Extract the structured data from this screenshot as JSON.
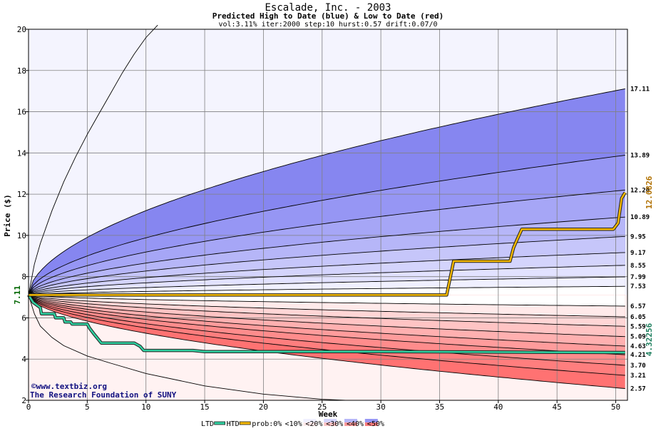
{
  "chart_data": {
    "type": "area",
    "title": "Escalade, Inc. - 2003",
    "subtitle": "Predicted High to Date (blue) &  Low to Date (red)",
    "params": "vol:3.11% iter:2000 step:10 hurst:0.57 drift:0.07/0",
    "xlabel": "Week",
    "ylabel": "Price ($)",
    "xlim": [
      0,
      51
    ],
    "ylim": [
      2,
      20
    ],
    "x_ticks": [
      0,
      5,
      10,
      15,
      20,
      25,
      30,
      35,
      40,
      45,
      50
    ],
    "y_ticks": [
      2,
      4,
      6,
      8,
      10,
      12,
      14,
      16,
      18,
      20
    ],
    "grid": true,
    "start_price": 7.11,
    "start_price_label": "7.11",
    "end_high_label": "12.0826",
    "end_low_label": "4.32256",
    "levels_high": [
      7.53,
      7.99,
      8.55,
      9.17,
      9.95,
      10.89,
      12.2,
      13.89,
      17.11
    ],
    "levels_low": [
      6.57,
      6.05,
      5.59,
      5.09,
      4.63,
      4.21,
      3.7,
      3.21,
      2.57
    ],
    "right_labels": [
      "17.11",
      "13.89",
      "12.20",
      "10.89",
      "9.95",
      "9.17",
      "8.55",
      "7.99",
      "7.53",
      "6.57",
      "6.05",
      "5.59",
      "5.09",
      "4.63",
      "4.21",
      "3.70",
      "3.21",
      "2.57"
    ],
    "band_colors_high": [
      "#ffffff",
      "#f0f0ff",
      "#e2e2ff",
      "#d4d4fc",
      "#c6c6fa",
      "#b6b6f8",
      "#a6a6f6",
      "#9696f4",
      "#8686f0"
    ],
    "band_colors_low": [
      "#ffffff",
      "#ffeaea",
      "#ffd6d6",
      "#ffc4c4",
      "#ffb0b0",
      "#ff9c9c",
      "#ff8c8c",
      "#ff7e7e",
      "#ff7272"
    ],
    "outer_high_color": "#f4f4fe",
    "outer_low_color": "#fff2f2",
    "envelope_high": [
      [
        0,
        7.11
      ],
      [
        0.5,
        8.6
      ],
      [
        1,
        9.6
      ],
      [
        2,
        11.2
      ],
      [
        3,
        12.6
      ],
      [
        4,
        13.8
      ],
      [
        5,
        14.9
      ],
      [
        6,
        15.9
      ],
      [
        7,
        16.9
      ],
      [
        8,
        17.9
      ],
      [
        9,
        18.8
      ],
      [
        10,
        19.6
      ],
      [
        11,
        20.2
      ]
    ],
    "envelope_low": [
      [
        0,
        7.11
      ],
      [
        0.5,
        6.2
      ],
      [
        1,
        5.6
      ],
      [
        2,
        5.05
      ],
      [
        3,
        4.65
      ],
      [
        5,
        4.15
      ],
      [
        7,
        3.8
      ],
      [
        10,
        3.3
      ],
      [
        15,
        2.7
      ],
      [
        20,
        2.3
      ],
      [
        25,
        2.05
      ],
      [
        27,
        1.95
      ]
    ],
    "path_htd": [
      [
        0,
        7.11
      ],
      [
        1,
        7.11
      ],
      [
        35.6,
        7.11
      ],
      [
        36.2,
        8.75
      ],
      [
        41,
        8.75
      ],
      [
        41.3,
        9.4
      ],
      [
        41.6,
        9.8
      ],
      [
        42,
        10.3
      ],
      [
        49.8,
        10.3
      ],
      [
        50.2,
        10.6
      ],
      [
        50.5,
        11.8
      ],
      [
        50.8,
        12.08
      ]
    ],
    "path_ltd": [
      [
        0,
        7.11
      ],
      [
        0.4,
        6.75
      ],
      [
        1,
        6.5
      ],
      [
        1.1,
        6.2
      ],
      [
        2.2,
        6.2
      ],
      [
        2.3,
        6.0
      ],
      [
        3,
        6.0
      ],
      [
        3.1,
        5.8
      ],
      [
        3.6,
        5.8
      ],
      [
        3.7,
        5.7
      ],
      [
        5,
        5.7
      ],
      [
        5.2,
        5.5
      ],
      [
        5.6,
        5.2
      ],
      [
        6.2,
        4.78
      ],
      [
        9,
        4.78
      ],
      [
        9.5,
        4.62
      ],
      [
        9.8,
        4.42
      ],
      [
        14,
        4.42
      ],
      [
        15,
        4.36
      ],
      [
        30,
        4.36
      ],
      [
        50.8,
        4.32
      ]
    ],
    "path_colors": {
      "htd": "#f4b800",
      "ltd": "#30d0a0",
      "outline": "#222222"
    },
    "label_colors": {
      "start": "#006600",
      "end_high": "#b07000",
      "end_low": "#208060"
    },
    "legend": [
      {
        "label": "LTD",
        "kind": "text"
      },
      {
        "label": "HTD",
        "kind": "line",
        "color": "#30d0a0"
      },
      {
        "label": "prob:0%",
        "kind": "line",
        "color": "#f4b800"
      },
      {
        "label": "<10%",
        "kind": "swatch",
        "colors": [
          "#ffffff",
          "#ffffff"
        ]
      },
      {
        "label": "<20%",
        "kind": "swatch",
        "colors": [
          "#f0f0ff",
          "#ffeaea"
        ]
      },
      {
        "label": "<30%",
        "kind": "swatch",
        "colors": [
          "#d4d4fc",
          "#ffc4c4"
        ]
      },
      {
        "label": "<40%",
        "kind": "swatch",
        "colors": [
          "#b6b6f8",
          "#ff9c9c"
        ]
      },
      {
        "label": "<50%",
        "kind": "swatch",
        "colors": [
          "#9696f4",
          "#ff7e7e"
        ]
      }
    ],
    "credit_site": "©www.textbiz.org",
    "credit_org": "The Research Foundation of SUNY"
  }
}
